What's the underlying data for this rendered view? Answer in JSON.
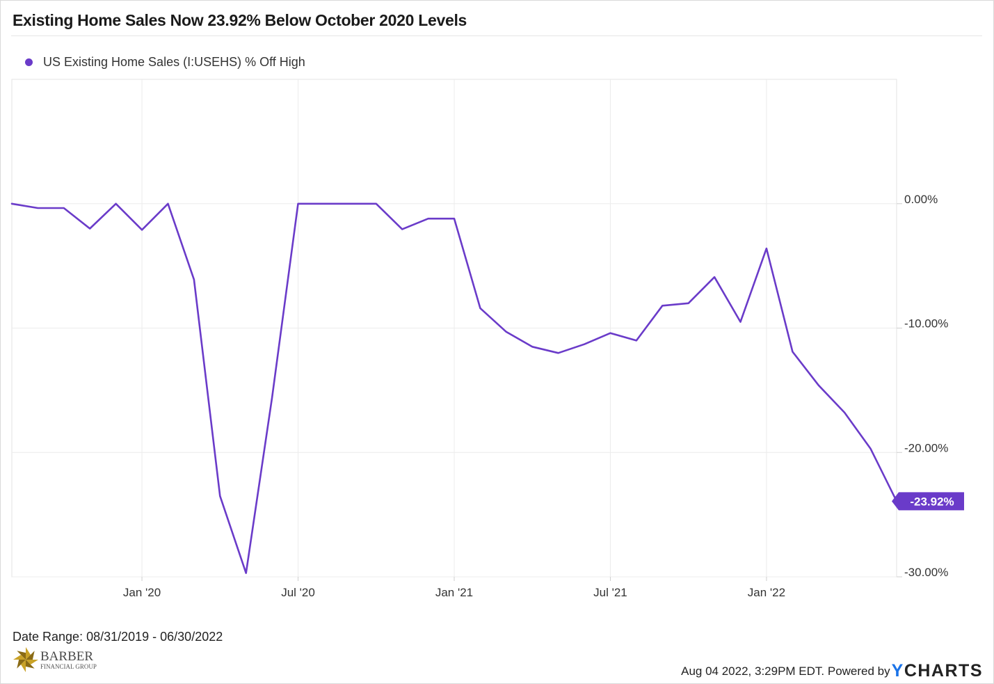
{
  "title": "Existing Home Sales Now 23.92% Below October 2020 Levels",
  "legend": {
    "label": "US Existing Home Sales (I:USEHS) % Off High",
    "color": "#6a3bc9"
  },
  "chart_data": {
    "type": "line",
    "title": "Existing Home Sales Now 23.92% Below October 2020 Levels",
    "x_unit": "month",
    "x_range": [
      "2019-08",
      "2022-06"
    ],
    "ylim": [
      -30.0,
      10.0
    ],
    "yticks": [
      0.0,
      -10.0,
      -20.0,
      -30.0
    ],
    "ytick_labels": [
      "0.00%",
      "-10.00%",
      "-20.00%",
      "-30.00%"
    ],
    "xticks": [
      "2020-01",
      "2020-07",
      "2021-01",
      "2021-07",
      "2022-01"
    ],
    "xtick_labels": [
      "Jan '20",
      "Jul '20",
      "Jan '21",
      "Jul '21",
      "Jan '22"
    ],
    "grid": true,
    "legend_position": "top-left",
    "series": [
      {
        "name": "US Existing Home Sales (I:USEHS) % Off High",
        "color": "#6a3bc9",
        "points": [
          {
            "x": "2019-08",
            "y": 0.0
          },
          {
            "x": "2019-09",
            "y": -0.35
          },
          {
            "x": "2019-10",
            "y": -0.35
          },
          {
            "x": "2019-11",
            "y": -2.0
          },
          {
            "x": "2019-12",
            "y": 0.0
          },
          {
            "x": "2020-01",
            "y": -2.1
          },
          {
            "x": "2020-02",
            "y": 0.0
          },
          {
            "x": "2020-03",
            "y": -6.1
          },
          {
            "x": "2020-04",
            "y": -23.5
          },
          {
            "x": "2020-05",
            "y": -29.7
          },
          {
            "x": "2020-06",
            "y": -15.6
          },
          {
            "x": "2020-07",
            "y": 0.0
          },
          {
            "x": "2020-08",
            "y": 0.0
          },
          {
            "x": "2020-09",
            "y": 0.0
          },
          {
            "x": "2020-10",
            "y": 0.0
          },
          {
            "x": "2020-11",
            "y": -2.05
          },
          {
            "x": "2020-12",
            "y": -1.2
          },
          {
            "x": "2021-01",
            "y": -1.2
          },
          {
            "x": "2021-02",
            "y": -8.4
          },
          {
            "x": "2021-03",
            "y": -10.3
          },
          {
            "x": "2021-04",
            "y": -11.5
          },
          {
            "x": "2021-05",
            "y": -12.0
          },
          {
            "x": "2021-06",
            "y": -11.3
          },
          {
            "x": "2021-07",
            "y": -10.4
          },
          {
            "x": "2021-08",
            "y": -11.0
          },
          {
            "x": "2021-09",
            "y": -8.2
          },
          {
            "x": "2021-10",
            "y": -8.0
          },
          {
            "x": "2021-11",
            "y": -5.9
          },
          {
            "x": "2021-12",
            "y": -9.5
          },
          {
            "x": "2022-01",
            "y": -3.6
          },
          {
            "x": "2022-02",
            "y": -11.9
          },
          {
            "x": "2022-03",
            "y": -14.6
          },
          {
            "x": "2022-04",
            "y": -16.8
          },
          {
            "x": "2022-05",
            "y": -19.7
          },
          {
            "x": "2022-06",
            "y": -23.92
          }
        ]
      }
    ],
    "last_value_label": "-23.92%"
  },
  "footer": {
    "date_range": "Date Range: 08/31/2019 - 06/30/2022",
    "timestamp": "Aug 04 2022, 3:29PM EDT. Powered by",
    "brand_y": "Y",
    "brand_rest": "CHARTS"
  },
  "logo": {
    "name": "BARBER",
    "subtitle": "FINANCIAL GROUP",
    "colors": [
      "#c9a227",
      "#8a6b15"
    ]
  }
}
